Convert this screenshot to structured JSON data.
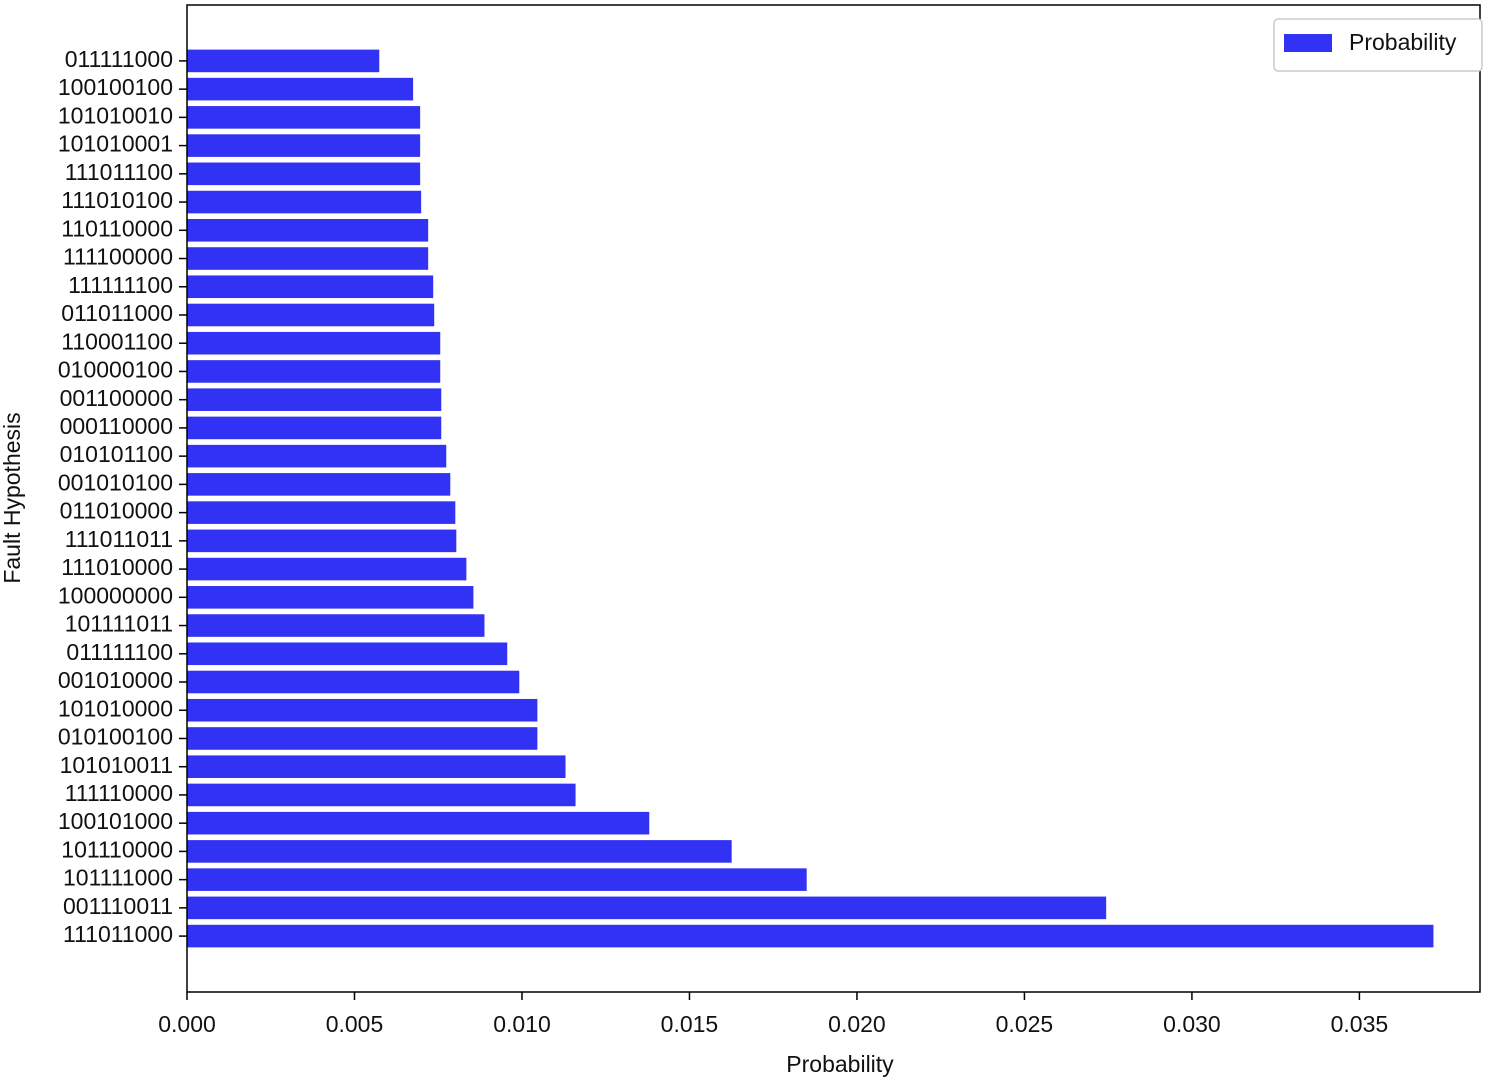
{
  "chart_data": {
    "type": "barh",
    "xlabel": "Probability",
    "ylabel": "Fault Hypothesis",
    "categories": [
      "011111000",
      "100100100",
      "101010010",
      "101010001",
      "111011100",
      "111010100",
      "110110000",
      "111100000",
      "111111100",
      "011011000",
      "110001100",
      "010000100",
      "001100000",
      "000110000",
      "010101100",
      "001010100",
      "011010000",
      "111011011",
      "111010000",
      "100000000",
      "101111011",
      "011111100",
      "001010000",
      "101010000",
      "010100100",
      "101010011",
      "111110000",
      "100101000",
      "101110000",
      "101111000",
      "001110011",
      "111011000"
    ],
    "series": [
      {
        "name": "Probability",
        "color": "#3232f5",
        "values": [
          0.00574,
          0.00675,
          0.00696,
          0.00696,
          0.00696,
          0.00699,
          0.0072,
          0.0072,
          0.00735,
          0.00738,
          0.00756,
          0.00756,
          0.00759,
          0.00759,
          0.00774,
          0.00786,
          0.00801,
          0.00804,
          0.00834,
          0.00855,
          0.00888,
          0.00956,
          0.00992,
          0.01046,
          0.01046,
          0.0113,
          0.0116,
          0.0138,
          0.01626,
          0.0185,
          0.02744,
          0.03721
        ]
      }
    ],
    "xlim": [
      0,
      0.0386
    ],
    "xticks": [
      {
        "value": 0,
        "label": "0.000"
      },
      0.005,
      {
        "value": 0.01,
        "label": "0.010"
      },
      0.015,
      {
        "value": 0.02,
        "label": "0.020"
      },
      0.025,
      {
        "value": 0.03,
        "label": "0.030"
      },
      0.035
    ],
    "legend": "upper right"
  }
}
